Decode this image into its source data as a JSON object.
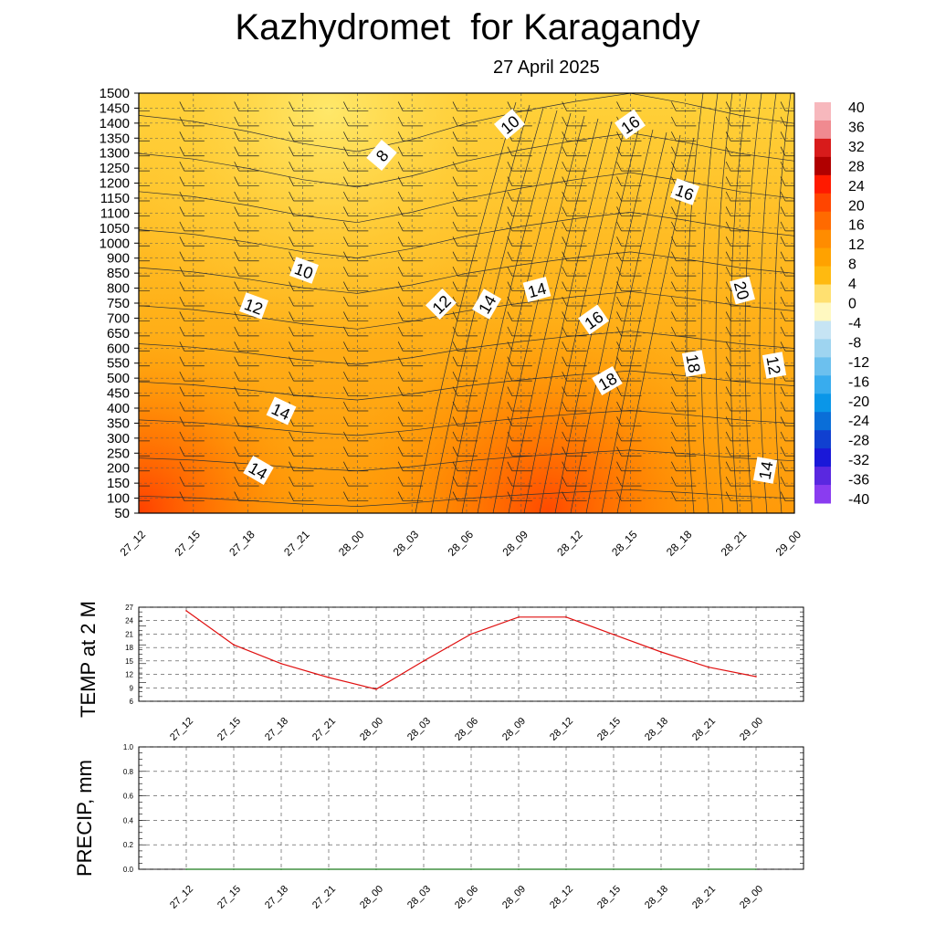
{
  "header": {
    "title": "Kazhydromet  for Karagandy",
    "subtitle": "27 April 2025"
  },
  "chart_data": [
    {
      "type": "heatmap",
      "title": "Kazhydromet  for Karagandy",
      "subtitle": "27 April 2025",
      "x_ticks": [
        "27_12",
        "27_15",
        "27_18",
        "27_21",
        "28_00",
        "28_03",
        "28_06",
        "28_09",
        "28_12",
        "28_15",
        "28_18",
        "28_21",
        "29_00"
      ],
      "y_ticks": [
        1500,
        1450,
        1400,
        1350,
        1300,
        1250,
        1200,
        1150,
        1100,
        1050,
        1000,
        900,
        850,
        800,
        750,
        700,
        650,
        600,
        550,
        500,
        450,
        400,
        350,
        300,
        250,
        200,
        150,
        100,
        50
      ],
      "colorbar": {
        "labels": [
          "40",
          "36",
          "32",
          "28",
          "24",
          "20",
          "16",
          "12",
          "8",
          "4",
          "0",
          "-4",
          "-8",
          "-12",
          "-16",
          "-20",
          "-24",
          "-28",
          "-32",
          "-36",
          "-40"
        ],
        "colors": [
          "#f7b8bd",
          "#f08a90",
          "#d81b1b",
          "#b00000",
          "#ff1a00",
          "#ff4500",
          "#ff6a00",
          "#ff8c00",
          "#ffa200",
          "#ffba10",
          "#ffe070",
          "#fff8c0",
          "#c6e4f4",
          "#9ed4f0",
          "#6cc0ee",
          "#38acee",
          "#0a96e8",
          "#0a6ed8",
          "#1040d0",
          "#1a18d8",
          "#5a28e0",
          "#8a3cf0"
        ]
      },
      "contour_labels": [
        "8",
        "10",
        "10",
        "12",
        "12",
        "14",
        "14",
        "14",
        "14",
        "16",
        "16",
        "16",
        "18",
        "18",
        "20",
        "12",
        "14"
      ],
      "grid": true,
      "series_description": "shaded temperature with isotherms and wind barbs"
    },
    {
      "type": "line",
      "ylabel": "TEMP at 2 M",
      "x_ticks": [
        "27_12",
        "27_15",
        "27_18",
        "27_21",
        "28_00",
        "28_03",
        "28_06",
        "28_09",
        "28_12",
        "28_15",
        "28_18",
        "28_21",
        "29_00"
      ],
      "y_ticks": [
        "27",
        "24",
        "21",
        "18",
        "15",
        "12",
        "9",
        "6"
      ],
      "ylim": [
        6,
        27
      ],
      "series": [
        {
          "color": "#e01010",
          "values": [
            26.2,
            18.6,
            14.4,
            11.3,
            8.7,
            15.0,
            21.0,
            24.8,
            24.8,
            20.9,
            17.0,
            13.6,
            11.5
          ]
        }
      ],
      "grid": true
    },
    {
      "type": "line",
      "ylabel": "PRECIP, mm",
      "x_ticks": [
        "27_12",
        "27_15",
        "27_18",
        "27_21",
        "28_00",
        "28_03",
        "28_06",
        "28_09",
        "28_12",
        "28_15",
        "28_18",
        "28_21",
        "29_00"
      ],
      "y_ticks": [
        "1.0",
        "0.8",
        "0.6",
        "0.4",
        "0.2",
        "0.0"
      ],
      "ylim": [
        0,
        1
      ],
      "series": [
        {
          "color": "#1a7a1a",
          "values": [
            0,
            0,
            0,
            0,
            0,
            0,
            0,
            0,
            0,
            0,
            0,
            0,
            0
          ]
        }
      ],
      "grid": true
    }
  ]
}
